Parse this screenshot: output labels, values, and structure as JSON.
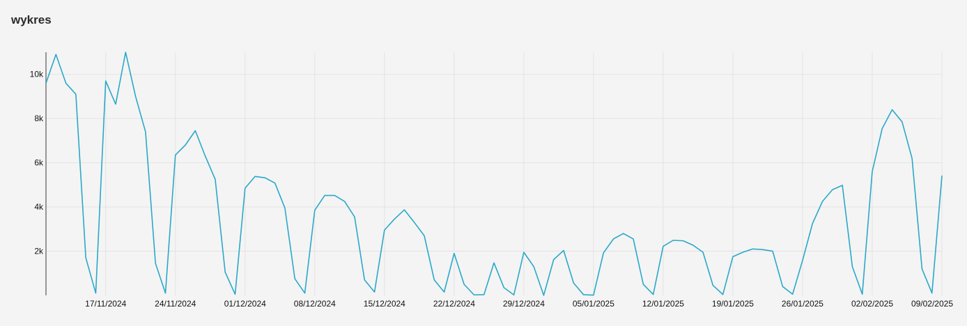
{
  "panel": {
    "title": "wykres"
  },
  "colors": {
    "line": "#2aa8c8",
    "grid": "#e3e3e3",
    "axis": "#777777",
    "background": "#f4f4f4"
  },
  "chart_data": {
    "type": "line",
    "title": "wykres",
    "xlabel": "",
    "ylabel": "",
    "grid": true,
    "ylim": [
      0,
      11000
    ],
    "x_start": "2024-11-11",
    "x_end": "2025-02-09",
    "y_ticks": [
      {
        "value": 2000,
        "label": "2k"
      },
      {
        "value": 4000,
        "label": "4k"
      },
      {
        "value": 6000,
        "label": "6k"
      },
      {
        "value": 8000,
        "label": "8k"
      },
      {
        "value": 10000,
        "label": "10k"
      }
    ],
    "x_ticks": [
      {
        "date": "2024-11-17",
        "label": "17/11/2024"
      },
      {
        "date": "2024-11-24",
        "label": "24/11/2024"
      },
      {
        "date": "2024-12-01",
        "label": "01/12/2024"
      },
      {
        "date": "2024-12-08",
        "label": "08/12/2024"
      },
      {
        "date": "2024-12-15",
        "label": "15/12/2024"
      },
      {
        "date": "2024-12-22",
        "label": "22/12/2024"
      },
      {
        "date": "2024-12-29",
        "label": "29/12/2024"
      },
      {
        "date": "2025-01-05",
        "label": "05/01/2025"
      },
      {
        "date": "2025-01-12",
        "label": "12/01/2025"
      },
      {
        "date": "2025-01-19",
        "label": "19/01/2025"
      },
      {
        "date": "2025-01-26",
        "label": "26/01/2025"
      },
      {
        "date": "2025-02-02",
        "label": "02/02/2025"
      },
      {
        "date": "2025-02-09",
        "label": "09/02/2025"
      }
    ],
    "series": [
      {
        "values": [
          9600,
          10900,
          9600,
          9100,
          1700,
          100,
          9700,
          8650,
          11000,
          9000,
          7400,
          1450,
          100,
          6350,
          6800,
          7450,
          6300,
          5250,
          1050,
          50,
          4850,
          5380,
          5320,
          5080,
          3950,
          750,
          100,
          3850,
          4520,
          4520,
          4250,
          3550,
          700,
          150,
          2950,
          3450,
          3870,
          3300,
          2700,
          700,
          150,
          1900,
          500,
          20,
          30,
          1470,
          350,
          20,
          1950,
          1300,
          0,
          1620,
          2030,
          560,
          30,
          10,
          1920,
          2550,
          2800,
          2550,
          500,
          40,
          2220,
          2490,
          2470,
          2270,
          1950,
          450,
          40,
          1750,
          1950,
          2100,
          2070,
          2000,
          400,
          50,
          1580,
          3250,
          4250,
          4780,
          4980,
          1300,
          50,
          5600,
          7550,
          8400,
          7850,
          6200,
          1200,
          100,
          5400
        ]
      }
    ]
  }
}
